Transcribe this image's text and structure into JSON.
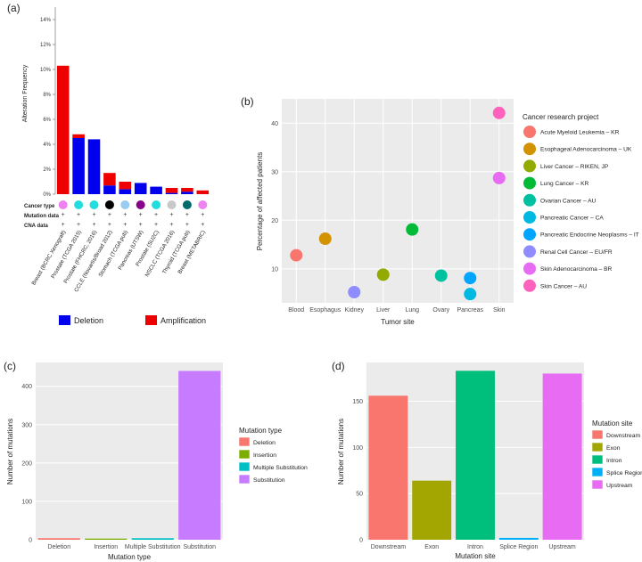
{
  "panels": {
    "a": "(a)",
    "b": "(b)",
    "c": "(c)",
    "d": "(d)"
  },
  "panel_a": {
    "ylabel": "Alteration Frequency",
    "row_labels": [
      "Cancer type",
      "Mutation data",
      "CNA data"
    ],
    "legend": [
      {
        "label": "Deletion",
        "color": "#0000ee"
      },
      {
        "label": "Amplification",
        "color": "#ee0000"
      }
    ]
  },
  "panel_b": {
    "xlabel": "Tumor site",
    "ylabel": "Percentage of affected patients",
    "legend_title": "Cancer research project"
  },
  "panel_c": {
    "xlabel": "Mutation type",
    "ylabel": "Number of mutations",
    "legend_title": "Mutation type"
  },
  "panel_d": {
    "xlabel": "Mutation site",
    "ylabel": "Number of mutations",
    "legend_title": "Mutation site"
  },
  "chart_data": [
    {
      "id": "a",
      "type": "bar",
      "stacked": true,
      "ylabel": "Alteration Frequency",
      "ylim": [
        0,
        15
      ],
      "yticks": [
        "0%",
        "2%",
        "4%",
        "6%",
        "8%",
        "10%",
        "12%",
        "14%"
      ],
      "categories": [
        "Breast (BCRC Xenograft)",
        "Prostate (TCGA 2015)",
        "Prostate (FHCRC, 2016)",
        "CCLE (Novartis/Broad 2012)",
        "Stomach (TCGA pub)",
        "Pancreas (UTSW)",
        "Prostate (SU2C)",
        "NSCLC (TCGA 2016)",
        "Thyroid (TCGA pub)",
        "Breast (METABRIC)"
      ],
      "category_colors": [
        "#ee82ee",
        "#22dddd",
        "#22dddd",
        "#000000",
        "#99ccee",
        "#88008b",
        "#22dddd",
        "#c8c8c8",
        "#006b6b",
        "#ee82ee"
      ],
      "series": [
        {
          "name": "Deletion",
          "color": "#0000ee",
          "values": [
            0,
            4.5,
            4.4,
            0.7,
            0.4,
            0.9,
            0.6,
            0.1,
            0.2,
            0
          ]
        },
        {
          "name": "Amplification",
          "color": "#ee0000",
          "values": [
            10.3,
            0.3,
            0,
            1.0,
            0.6,
            0,
            0,
            0.4,
            0.3,
            0.3
          ]
        }
      ]
    },
    {
      "id": "b",
      "type": "scatter",
      "xlabel": "Tumor site",
      "ylabel": "Percentage of affected patients",
      "x_categories": [
        "Blood",
        "Esophagus",
        "Kidney",
        "Liver",
        "Lung",
        "Ovary",
        "Pancreas",
        "Skin"
      ],
      "ylim": [
        3,
        45
      ],
      "yticks": [
        10,
        20,
        30,
        40
      ],
      "legend_title": "Cancer research project",
      "series": [
        {
          "name": "Acute Myeloid Leukemia – KR",
          "color": "#f8766d",
          "points": [
            [
              "Blood",
              12.8
            ]
          ]
        },
        {
          "name": "Esophageal Adenocarcinoma – UK",
          "color": "#d39200",
          "points": [
            [
              "Esophagus",
              16.2
            ]
          ]
        },
        {
          "name": "Liver Cancer – RIKEN, JP",
          "color": "#93aa00",
          "points": [
            [
              "Liver",
              8.8
            ]
          ]
        },
        {
          "name": "Lung Cancer – KR",
          "color": "#00ba38",
          "points": [
            [
              "Lung",
              18.1
            ]
          ]
        },
        {
          "name": "Ovarian Cancer – AU",
          "color": "#00c19f",
          "points": [
            [
              "Ovary",
              8.6
            ]
          ]
        },
        {
          "name": "Pancreatic Cancer – CA",
          "color": "#00b9e3",
          "points": [
            [
              "Pancreas",
              4.8
            ]
          ]
        },
        {
          "name": "Pancreatic Endocrine Neoplasms – IT",
          "color": "#00a5ff",
          "points": [
            [
              "Pancreas",
              8.1
            ]
          ]
        },
        {
          "name": "Renal Cell Cancer – EU/FR",
          "color": "#8f8cff",
          "points": [
            [
              "Kidney",
              5.2
            ]
          ]
        },
        {
          "name": "Skin Adenocarcinoma – BR",
          "color": "#e76bf3",
          "points": [
            [
              "Skin",
              28.7
            ]
          ]
        },
        {
          "name": "Skin Cancer – AU",
          "color": "#ff62bc",
          "points": [
            [
              "Skin",
              42.1
            ]
          ]
        }
      ]
    },
    {
      "id": "c",
      "type": "bar",
      "xlabel": "Mutation type",
      "ylabel": "Number of mutations",
      "categories": [
        "Deletion",
        "Insertion",
        "Multiple Substitution",
        "Substitution"
      ],
      "values": [
        4,
        3,
        4,
        440
      ],
      "colors": [
        "#f8766d",
        "#7cae00",
        "#00bfc4",
        "#c77cff"
      ],
      "ylim": [
        0,
        462
      ],
      "yticks": [
        0,
        100,
        200,
        300,
        400
      ],
      "legend_title": "Mutation type"
    },
    {
      "id": "d",
      "type": "bar",
      "xlabel": "Mutation site",
      "ylabel": "Number of mutations",
      "categories": [
        "Downstream",
        "Exon",
        "Intron",
        "Splice Region",
        "Upstream"
      ],
      "values": [
        156,
        64,
        183,
        2,
        180
      ],
      "colors": [
        "#f8766d",
        "#a3a500",
        "#00bf7d",
        "#00b0f6",
        "#e76bf3"
      ],
      "ylim": [
        0,
        192
      ],
      "yticks": [
        0,
        50,
        100,
        150
      ],
      "legend_title": "Mutation site"
    }
  ]
}
